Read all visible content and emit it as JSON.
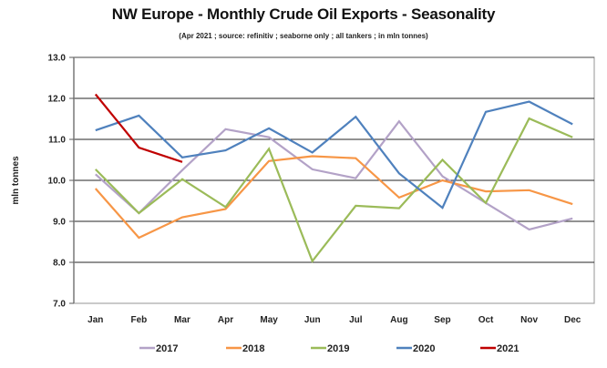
{
  "chart_data": {
    "type": "line",
    "title": "NW Europe - Monthly Crude Oil Exports - Seasonality",
    "subtitle": "(Apr 2021 ; source: refinitiv ; seaborne only ; all tankers ; in mln tonnes)",
    "xlabel": "",
    "ylabel": "mln tonnes",
    "ylim": [
      7.0,
      13.0
    ],
    "ytick_step": 1.0,
    "ytick_labels": [
      "7.0",
      "8.0",
      "9.0",
      "10.0",
      "11.0",
      "12.0",
      "13.0"
    ],
    "grid": true,
    "legend_position": "bottom",
    "categories": [
      "Jan",
      "Feb",
      "Mar",
      "Apr",
      "May",
      "Jun",
      "Jul",
      "Aug",
      "Sep",
      "Oct",
      "Nov",
      "Dec"
    ],
    "series": [
      {
        "name": "2017",
        "color": "#b3a2c7",
        "values": [
          10.15,
          9.2,
          10.25,
          11.25,
          11.05,
          10.27,
          10.05,
          11.44,
          10.1,
          9.45,
          8.8,
          9.07
        ]
      },
      {
        "name": "2018",
        "color": "#f79646",
        "values": [
          9.8,
          8.6,
          9.1,
          9.3,
          10.47,
          10.59,
          10.54,
          9.58,
          10.0,
          9.73,
          9.76,
          9.42
        ]
      },
      {
        "name": "2019",
        "color": "#9bbb59",
        "values": [
          10.27,
          9.2,
          10.03,
          9.35,
          10.77,
          8.03,
          9.38,
          9.32,
          10.5,
          9.45,
          11.51,
          11.05
        ]
      },
      {
        "name": "2020",
        "color": "#4f81bd",
        "values": [
          11.22,
          11.58,
          10.56,
          10.73,
          11.27,
          10.68,
          11.55,
          10.17,
          9.33,
          11.67,
          11.92,
          11.37
        ]
      },
      {
        "name": "2021",
        "color": "#c00000",
        "values": [
          12.1,
          10.8,
          10.45
        ]
      }
    ]
  }
}
